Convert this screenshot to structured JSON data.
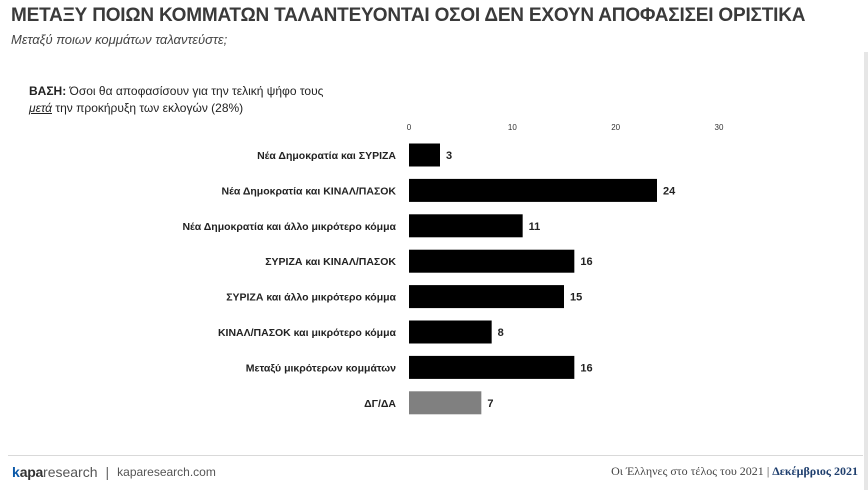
{
  "header": {
    "title": "ΜΕΤΑΞΥ ΠΟΙΩΝ ΚΟΜΜΑΤΩΝ ΤΑΛΑΝΤΕΥΟΝΤΑΙ ΟΣΟΙ ΔΕΝ ΕΧΟΥΝ ΑΠΟΦΑΣΙΣΕΙ ΟΡΙΣΤΙΚΑ",
    "subtitle": "Μεταξύ ποιων κομμάτων ταλαντεύστε;"
  },
  "base_note": {
    "label": "ΒΑΣΗ:",
    "line1": "Όσοι θα αποφασίσουν για την τελική ψήφο τους",
    "underlined": "μετά",
    "line2": "την προκήρυξη των εκλογών (28%)"
  },
  "chart_data": {
    "type": "bar",
    "orientation": "horizontal",
    "categories": [
      "Νέα Δημοκρατία και ΣΥΡΙΖΑ",
      "Νέα Δημοκρατία και ΚΙΝΑΛ/ΠΑΣΟΚ",
      "Νέα Δημοκρατία και άλλο μικρότερο κόμμα",
      "ΣΥΡΙΖΑ και ΚΙΝΑΛ/ΠΑΣΟΚ",
      "ΣΥΡΙΖΑ και άλλο μικρότερο κόμμα",
      "ΚΙΝΑΛ/ΠΑΣΟΚ και μικρότερο κόμμα",
      "Μεταξύ μικρότερων κομμάτων",
      "ΔΓ/ΔΑ"
    ],
    "values": [
      3,
      24,
      11,
      16,
      15,
      8,
      16,
      7
    ],
    "value_labels": [
      "3",
      "24",
      "11",
      "16",
      "15",
      "8",
      "16",
      "7"
    ],
    "xlim": [
      0,
      30
    ],
    "xticks": [
      "0",
      "10",
      "20",
      "30"
    ],
    "grid": false,
    "colors": {
      "default": "#000000",
      "highlight": "#808080"
    },
    "highlight_index": 7
  },
  "footer": {
    "brand_k": "k",
    "brand_rest": "apa",
    "brand_research": "research",
    "separator": "|",
    "website": "kaparesearch.com",
    "survey": "Οι Έλληνες στο τέλος του 2021",
    "survey_sep": "|",
    "month": "Δεκέμβριος 2021"
  }
}
